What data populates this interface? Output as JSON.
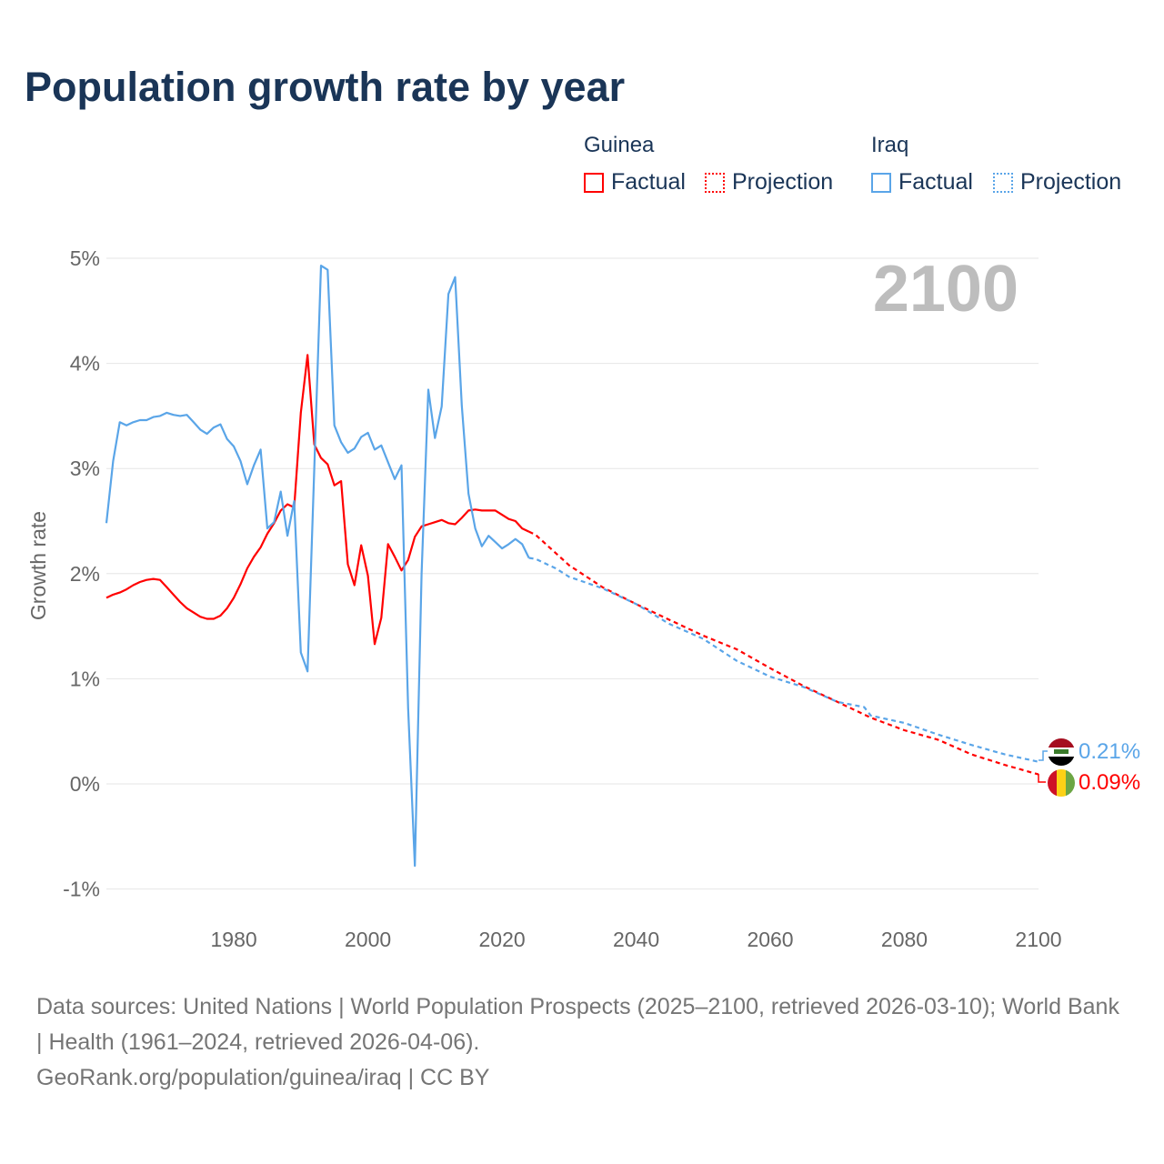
{
  "title": "Population growth rate by year",
  "legend": {
    "groups": [
      {
        "name": "Guinea",
        "factual_label": "Factual",
        "projection_label": "Projection",
        "color": "#ff0000"
      },
      {
        "name": "Iraq",
        "factual_label": "Factual",
        "projection_label": "Projection",
        "color": "#5aa5e8"
      }
    ]
  },
  "year_watermark": "2100",
  "end_labels": {
    "iraq": "0.21%",
    "guinea": "0.09%"
  },
  "footer": {
    "sources": "Data sources: United Nations | World Population Prospects (2025–2100, retrieved 2026-03-10); World Bank | Health (1961–2024, retrieved 2026-04-06).",
    "credit": "GeoRank.org/population/guinea/iraq | CC BY"
  },
  "chart_data": {
    "type": "line",
    "title": "Population growth rate by year",
    "xlabel": "",
    "ylabel": "Growth rate",
    "xlim": [
      1961,
      2100
    ],
    "ylim": [
      -1,
      5
    ],
    "xticks": [
      "1980",
      "2000",
      "2020",
      "2040",
      "2060",
      "2080",
      "2100"
    ],
    "yticks": [
      "-1%",
      "0%",
      "1%",
      "2%",
      "3%",
      "4%",
      "5%"
    ],
    "grid": true,
    "legend_position": "top-right",
    "series": [
      {
        "name": "Guinea",
        "kind": "Factual",
        "color": "#ff0000",
        "x": [
          1961,
          1962,
          1963,
          1964,
          1965,
          1966,
          1967,
          1968,
          1969,
          1970,
          1971,
          1972,
          1973,
          1974,
          1975,
          1976,
          1977,
          1978,
          1979,
          1980,
          1981,
          1982,
          1983,
          1984,
          1985,
          1986,
          1987,
          1988,
          1989,
          1990,
          1991,
          1992,
          1993,
          1994,
          1995,
          1996,
          1997,
          1998,
          1999,
          2000,
          2001,
          2002,
          2003,
          2004,
          2005,
          2006,
          2007,
          2008,
          2009,
          2010,
          2011,
          2012,
          2013,
          2014,
          2015,
          2016,
          2017,
          2018,
          2019,
          2020,
          2021,
          2022,
          2023,
          2024
        ],
        "y": [
          1.77,
          1.8,
          1.82,
          1.85,
          1.89,
          1.92,
          1.94,
          1.95,
          1.94,
          1.87,
          1.8,
          1.73,
          1.67,
          1.63,
          1.59,
          1.57,
          1.57,
          1.6,
          1.67,
          1.77,
          1.9,
          2.05,
          2.16,
          2.25,
          2.38,
          2.48,
          2.6,
          2.66,
          2.63,
          3.53,
          4.08,
          3.23,
          3.1,
          3.04,
          2.84,
          2.88,
          2.09,
          1.89,
          2.27,
          1.98,
          1.33,
          1.58,
          2.28,
          2.16,
          2.03,
          2.13,
          2.35,
          2.45,
          2.47,
          2.49,
          2.51,
          2.48,
          2.47,
          2.53,
          2.6,
          2.61,
          2.6,
          2.6,
          2.6,
          2.56,
          2.52,
          2.5,
          2.43,
          2.4
        ]
      },
      {
        "name": "Guinea",
        "kind": "Projection",
        "color": "#ff0000",
        "x": [
          2025,
          2030,
          2035,
          2040,
          2045,
          2050,
          2055,
          2060,
          2065,
          2070,
          2075,
          2080,
          2085,
          2090,
          2095,
          2100
        ],
        "y": [
          2.37,
          2.08,
          1.87,
          1.71,
          1.56,
          1.41,
          1.28,
          1.1,
          0.93,
          0.78,
          0.63,
          0.51,
          0.42,
          0.28,
          0.18,
          0.09
        ]
      },
      {
        "name": "Iraq",
        "kind": "Factual",
        "color": "#5aa5e8",
        "x": [
          1961,
          1962,
          1963,
          1964,
          1965,
          1966,
          1967,
          1968,
          1969,
          1970,
          1971,
          1972,
          1973,
          1974,
          1975,
          1976,
          1977,
          1978,
          1979,
          1980,
          1981,
          1982,
          1983,
          1984,
          1985,
          1986,
          1987,
          1988,
          1989,
          1990,
          1991,
          1992,
          1993,
          1994,
          1995,
          1996,
          1997,
          1998,
          1999,
          2000,
          2001,
          2002,
          2003,
          2004,
          2005,
          2006,
          2007,
          2008,
          2009,
          2010,
          2011,
          2012,
          2013,
          2014,
          2015,
          2016,
          2017,
          2018,
          2019,
          2020,
          2021,
          2022,
          2023,
          2024
        ],
        "y": [
          2.48,
          3.07,
          3.44,
          3.41,
          3.44,
          3.46,
          3.46,
          3.49,
          3.5,
          3.53,
          3.51,
          3.5,
          3.51,
          3.44,
          3.37,
          3.33,
          3.39,
          3.42,
          3.28,
          3.21,
          3.07,
          2.85,
          3.03,
          3.18,
          2.43,
          2.49,
          2.78,
          2.36,
          2.69,
          1.25,
          1.07,
          3.0,
          4.93,
          4.89,
          3.41,
          3.25,
          3.15,
          3.19,
          3.3,
          3.34,
          3.18,
          3.22,
          3.06,
          2.9,
          3.03,
          0.72,
          -0.78,
          2.0,
          3.75,
          3.29,
          3.59,
          4.66,
          4.82,
          3.6,
          2.76,
          2.43,
          2.26,
          2.36,
          2.3,
          2.24,
          2.28,
          2.33,
          2.28,
          2.15
        ]
      },
      {
        "name": "Iraq",
        "kind": "Projection",
        "color": "#5aa5e8",
        "x": [
          2025,
          2028,
          2030,
          2035,
          2040,
          2045,
          2050,
          2055,
          2060,
          2065,
          2070,
          2074,
          2075,
          2080,
          2085,
          2090,
          2095,
          2100
        ],
        "y": [
          2.14,
          2.05,
          1.97,
          1.86,
          1.71,
          1.52,
          1.38,
          1.17,
          1.02,
          0.92,
          0.78,
          0.73,
          0.65,
          0.58,
          0.47,
          0.37,
          0.28,
          0.21
        ]
      }
    ]
  }
}
